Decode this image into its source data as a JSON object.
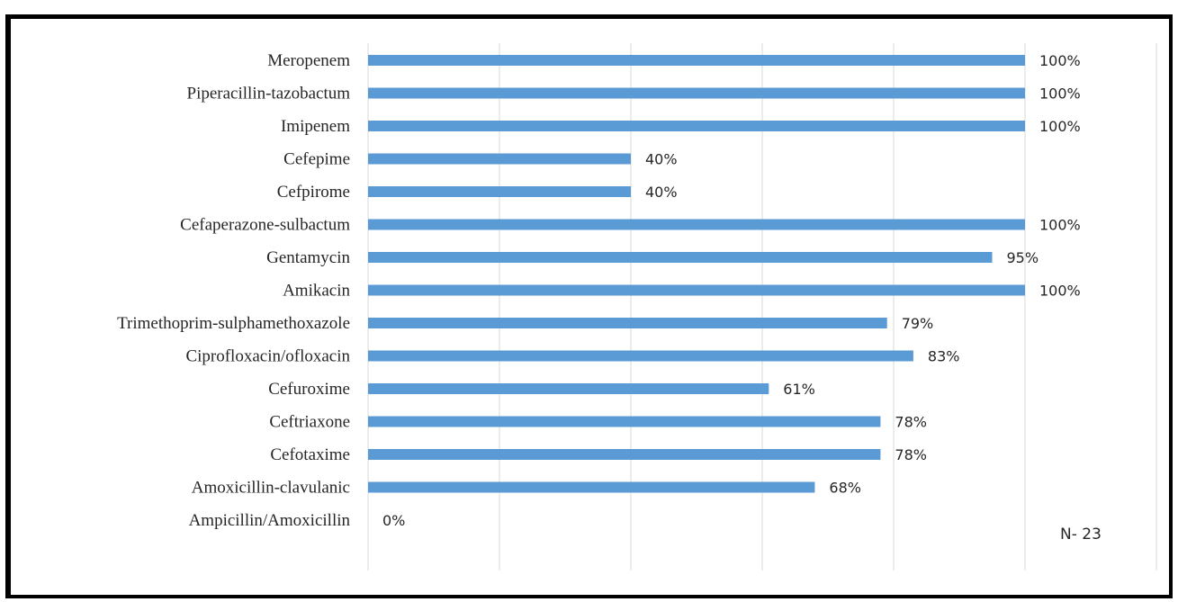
{
  "chart_data": {
    "type": "bar",
    "orientation": "horizontal",
    "categories": [
      "Meropenem",
      "Piperacillin-tazobactum",
      "Imipenem",
      "Cefepime",
      "Cefpirome",
      "Cefaperazone-sulbactum",
      "Gentamycin",
      "Amikacin",
      "Trimethoprim-sulphamethoxazole",
      "Ciprofloxacin/ofloxacin",
      "Cefuroxime",
      "Ceftriaxone",
      "Cefotaxime",
      "Amoxicillin-clavulanic",
      "Ampicillin/Amoxicillin"
    ],
    "values": [
      100,
      100,
      100,
      40,
      40,
      100,
      95,
      100,
      79,
      83,
      61,
      78,
      78,
      68,
      0
    ],
    "data_labels": [
      "100%",
      "100%",
      "100%",
      "40%",
      "40%",
      "100%",
      "95%",
      "100%",
      "79%",
      "83%",
      "61%",
      "78%",
      "78%",
      "68%",
      "0%"
    ],
    "xlim": [
      0,
      120
    ],
    "x_gridlines": [
      0,
      20,
      40,
      60,
      80,
      100,
      120
    ],
    "grid": true,
    "legend": "none",
    "annotation": "N- 23",
    "bar_color": "#5b9bd5",
    "grid_color": "#d9d9d9",
    "text_color": "#262626"
  }
}
